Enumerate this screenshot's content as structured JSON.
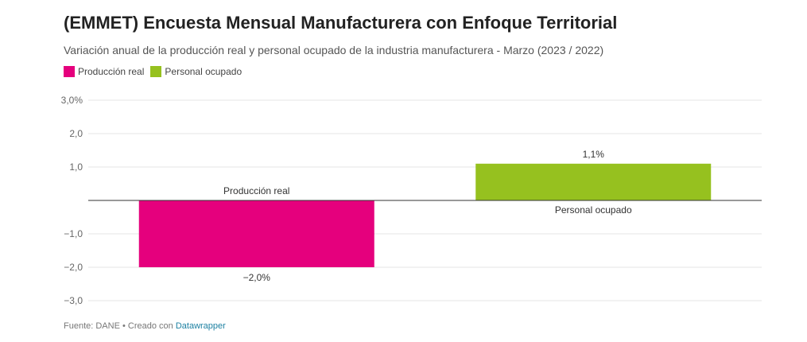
{
  "title": "(EMMET) Encuesta Mensual Manufacturera con Enfoque Territorial",
  "subtitle": "Variación anual de la producción real y personal ocupado de la industria manufacturera - Marzo (2023 / 2022)",
  "footer": {
    "source_text": "Fuente: DANE • Creado con",
    "link_text": "Datawrapper"
  },
  "colors": {
    "produccion": "#e5007d",
    "personal": "#96c11f",
    "grid": "#e6e6e6",
    "baseline": "#333333",
    "link": "#1d81a2"
  },
  "chart_data": {
    "type": "bar",
    "categories": [
      "Producción real",
      "Personal ocupado"
    ],
    "series": [
      {
        "name": "Producción real",
        "values": [
          -2.0,
          null
        ]
      },
      {
        "name": "Personal ocupado",
        "values": [
          null,
          1.1
        ]
      }
    ],
    "values": [
      -2.0,
      1.1
    ],
    "value_labels": [
      "−2,0%",
      "1,1%"
    ],
    "ylim": [
      -3.0,
      3.0
    ],
    "yticks": [
      {
        "value": 3.0,
        "label": "3,0%"
      },
      {
        "value": 2.0,
        "label": "2,0"
      },
      {
        "value": 1.0,
        "label": "1,0"
      },
      {
        "value": -1.0,
        "label": "−1,0"
      },
      {
        "value": -2.0,
        "label": "−2,0"
      },
      {
        "value": -3.0,
        "label": "−3,0"
      }
    ],
    "grid": true,
    "legend": "top-left",
    "title": "",
    "xlabel": "",
    "ylabel": ""
  }
}
